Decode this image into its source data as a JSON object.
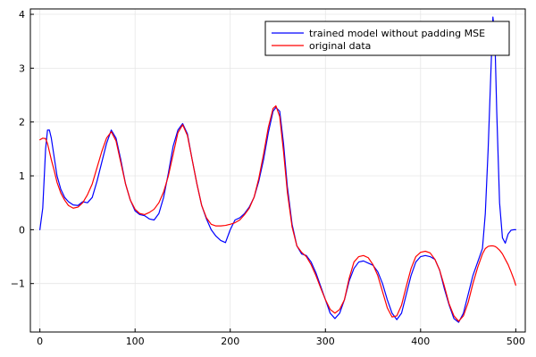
{
  "chart_data": {
    "type": "line",
    "title": "",
    "xlabel": "",
    "ylabel": "",
    "xlim": [
      -10,
      510
    ],
    "ylim": [
      -1.9,
      4.1
    ],
    "xticks": [
      0,
      100,
      200,
      300,
      400,
      500
    ],
    "xtick_labels": [
      "0",
      "100",
      "200",
      "300",
      "400",
      "500"
    ],
    "yticks": [
      -1,
      0,
      1,
      2,
      3,
      4
    ],
    "ytick_labels": [
      "−1",
      "0",
      "1",
      "2",
      "3",
      "4"
    ],
    "grid": true,
    "legend_position": "top-right",
    "series": [
      {
        "name": "trained model without padding MSE",
        "color": "#0000ff",
        "x": [
          0,
          3,
          6,
          8,
          10,
          12,
          15,
          18,
          22,
          26,
          30,
          35,
          40,
          45,
          50,
          55,
          60,
          65,
          70,
          75,
          80,
          85,
          90,
          95,
          100,
          105,
          110,
          115,
          120,
          125,
          130,
          135,
          140,
          145,
          150,
          155,
          160,
          165,
          170,
          175,
          180,
          185,
          190,
          195,
          200,
          205,
          210,
          215,
          220,
          225,
          230,
          235,
          240,
          245,
          248,
          252,
          256,
          260,
          265,
          270,
          275,
          280,
          285,
          290,
          295,
          300,
          305,
          310,
          315,
          320,
          325,
          330,
          335,
          340,
          345,
          350,
          355,
          360,
          365,
          370,
          375,
          380,
          385,
          390,
          395,
          400,
          405,
          410,
          415,
          420,
          425,
          430,
          435,
          440,
          445,
          450,
          455,
          460,
          465,
          468,
          471,
          474,
          476,
          478,
          480,
          483,
          486,
          489,
          492,
          495,
          498,
          500
        ],
        "y": [
          0.0,
          0.4,
          1.5,
          1.85,
          1.85,
          1.7,
          1.35,
          1.0,
          0.75,
          0.6,
          0.52,
          0.46,
          0.45,
          0.52,
          0.5,
          0.6,
          0.9,
          1.25,
          1.6,
          1.85,
          1.7,
          1.3,
          0.85,
          0.55,
          0.35,
          0.28,
          0.26,
          0.2,
          0.18,
          0.3,
          0.6,
          1.05,
          1.55,
          1.85,
          1.97,
          1.78,
          1.3,
          0.85,
          0.45,
          0.2,
          0.0,
          -0.12,
          -0.2,
          -0.24,
          0.0,
          0.18,
          0.22,
          0.3,
          0.42,
          0.6,
          0.9,
          1.3,
          1.8,
          2.2,
          2.27,
          2.2,
          1.6,
          0.8,
          0.1,
          -0.3,
          -0.45,
          -0.48,
          -0.6,
          -0.8,
          -1.05,
          -1.3,
          -1.55,
          -1.65,
          -1.55,
          -1.3,
          -0.95,
          -0.72,
          -0.6,
          -0.58,
          -0.62,
          -0.66,
          -0.78,
          -1.0,
          -1.3,
          -1.55,
          -1.67,
          -1.55,
          -1.2,
          -0.85,
          -0.6,
          -0.5,
          -0.48,
          -0.5,
          -0.55,
          -0.75,
          -1.1,
          -1.4,
          -1.65,
          -1.72,
          -1.55,
          -1.2,
          -0.85,
          -0.6,
          -0.35,
          0.3,
          1.5,
          3.0,
          3.95,
          3.6,
          2.2,
          0.5,
          -0.15,
          -0.25,
          -0.08,
          -0.01,
          0.0,
          0.0
        ]
      },
      {
        "name": "original data",
        "color": "#ff0000",
        "x": [
          0,
          3,
          6,
          8,
          10,
          12,
          15,
          18,
          22,
          26,
          30,
          35,
          40,
          45,
          50,
          55,
          60,
          65,
          70,
          75,
          80,
          85,
          90,
          95,
          100,
          105,
          110,
          115,
          120,
          125,
          130,
          135,
          140,
          145,
          150,
          155,
          160,
          165,
          170,
          175,
          180,
          185,
          190,
          195,
          200,
          205,
          210,
          215,
          220,
          225,
          230,
          235,
          240,
          245,
          248,
          252,
          256,
          260,
          265,
          270,
          275,
          280,
          285,
          290,
          295,
          300,
          305,
          310,
          315,
          320,
          325,
          330,
          335,
          340,
          345,
          350,
          355,
          360,
          365,
          370,
          375,
          380,
          385,
          390,
          395,
          400,
          405,
          410,
          415,
          420,
          425,
          430,
          435,
          440,
          445,
          450,
          455,
          460,
          465,
          468,
          471,
          474,
          476,
          478,
          480,
          483,
          486,
          489,
          492,
          495,
          498,
          500
        ],
        "y": [
          1.67,
          1.7,
          1.69,
          1.6,
          1.45,
          1.3,
          1.1,
          0.88,
          0.68,
          0.55,
          0.45,
          0.4,
          0.42,
          0.5,
          0.65,
          0.85,
          1.15,
          1.45,
          1.7,
          1.82,
          1.65,
          1.25,
          0.85,
          0.55,
          0.38,
          0.3,
          0.28,
          0.32,
          0.38,
          0.5,
          0.7,
          1.0,
          1.4,
          1.8,
          1.95,
          1.75,
          1.3,
          0.85,
          0.45,
          0.22,
          0.1,
          0.07,
          0.07,
          0.08,
          0.1,
          0.13,
          0.18,
          0.28,
          0.4,
          0.6,
          0.95,
          1.4,
          1.9,
          2.25,
          2.3,
          2.1,
          1.45,
          0.7,
          0.05,
          -0.3,
          -0.42,
          -0.5,
          -0.65,
          -0.85,
          -1.08,
          -1.3,
          -1.48,
          -1.55,
          -1.48,
          -1.3,
          -0.9,
          -0.6,
          -0.5,
          -0.48,
          -0.52,
          -0.65,
          -0.85,
          -1.15,
          -1.45,
          -1.62,
          -1.6,
          -1.4,
          -1.05,
          -0.72,
          -0.5,
          -0.42,
          -0.4,
          -0.43,
          -0.55,
          -0.75,
          -1.05,
          -1.38,
          -1.6,
          -1.7,
          -1.6,
          -1.35,
          -1.0,
          -0.7,
          -0.45,
          -0.35,
          -0.31,
          -0.3,
          -0.3,
          -0.31,
          -0.33,
          -0.38,
          -0.45,
          -0.55,
          -0.65,
          -0.78,
          -0.92,
          -1.03
        ]
      }
    ]
  }
}
